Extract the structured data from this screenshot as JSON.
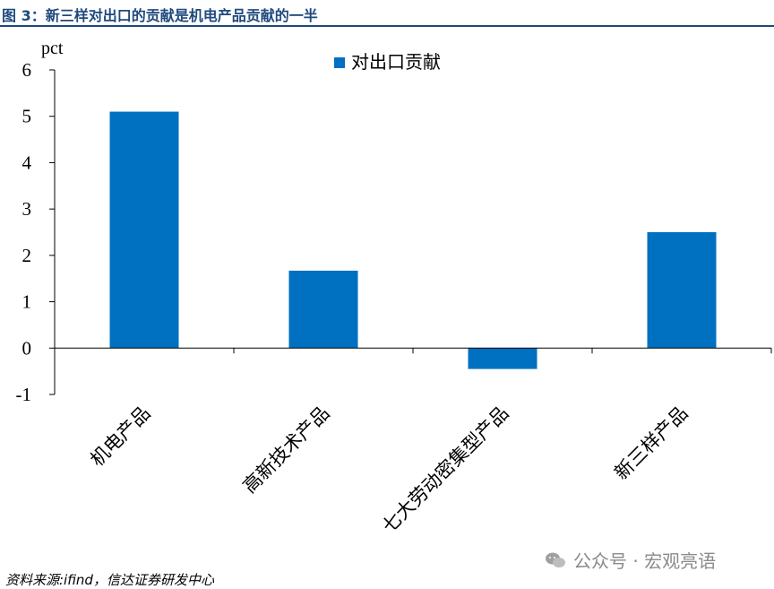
{
  "title": "图 3：新三样对出口的贡献是机电产品贡献的一半",
  "source": "资料来源:ifind，信达证券研发中心",
  "watermark": "公众号 · 宏观亮语",
  "chart_data": {
    "type": "bar",
    "ylabel": "pct",
    "categories": [
      "机电产品",
      "高新技术产品",
      "七大劳动密集型产品",
      "新三样产品"
    ],
    "series": [
      {
        "name": "对出口贡献",
        "values": [
          5.1,
          1.67,
          -0.45,
          2.5
        ]
      }
    ],
    "ylim": [
      -1,
      6
    ],
    "yticks": [
      -1,
      0,
      1,
      2,
      3,
      4,
      5,
      6
    ],
    "grid": false,
    "legend": "top-center",
    "color": "#0070C0"
  }
}
